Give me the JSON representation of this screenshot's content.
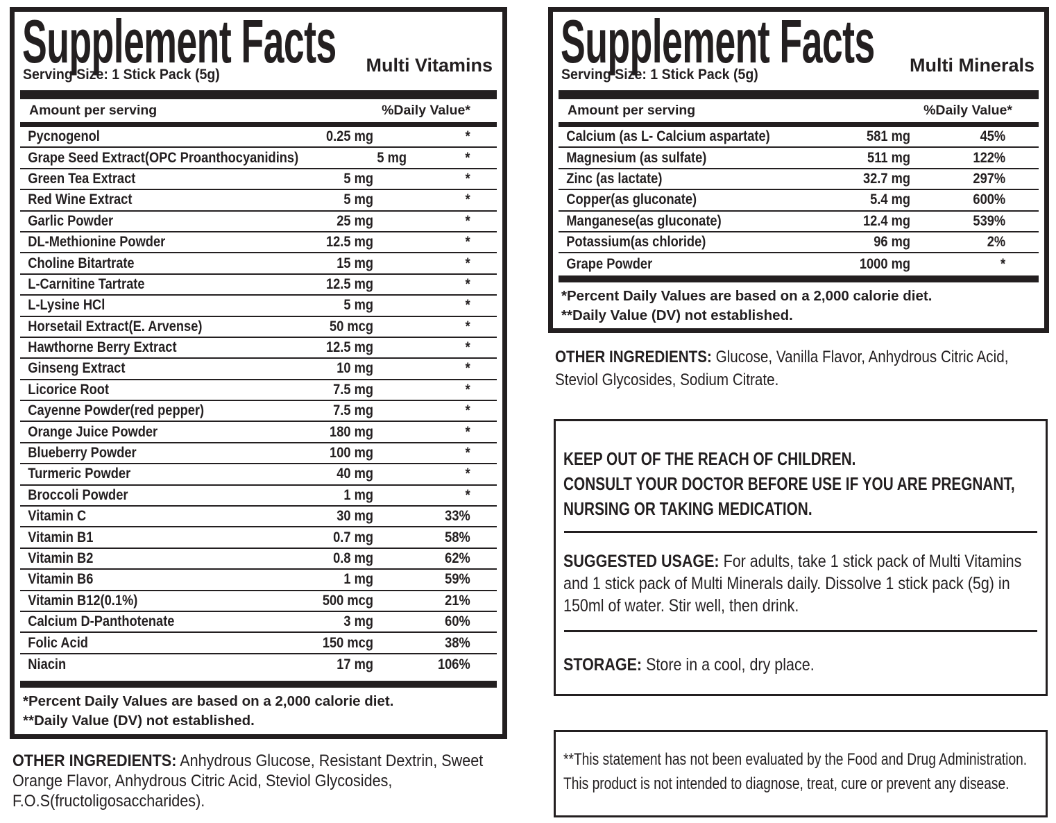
{
  "colors": {
    "ink": "#231f20"
  },
  "vitamins": {
    "title": "Supplement Facts",
    "subtitle": "Multi Vitamins",
    "serving_size": "Serving Size: 1 Stick Pack (5g)",
    "columns": {
      "amount": "Amount per serving",
      "daily_value": "%Daily Value*"
    },
    "rows": [
      {
        "name": "Pycnogenol",
        "amount": "0.25 mg",
        "dv": "*"
      },
      {
        "name": "Grape Seed Extract(OPC Proanthocyanidins)",
        "amount": "5 mg",
        "dv": "*"
      },
      {
        "name": "Green Tea Extract",
        "amount": "5 mg",
        "dv": "*"
      },
      {
        "name": "Red Wine Extract",
        "amount": "5 mg",
        "dv": "*"
      },
      {
        "name": "Garlic Powder",
        "amount": "25 mg",
        "dv": "*"
      },
      {
        "name": "DL-Methionine Powder",
        "amount": "12.5 mg",
        "dv": "*"
      },
      {
        "name": "Choline Bitartrate",
        "amount": "15 mg",
        "dv": "*"
      },
      {
        "name": "L-Carnitine Tartrate",
        "amount": "12.5 mg",
        "dv": "*"
      },
      {
        "name": "L-Lysine HCl",
        "amount": "5 mg",
        "dv": "*"
      },
      {
        "name": "Horsetail Extract(E. Arvense)",
        "amount": "50 mcg",
        "dv": "*"
      },
      {
        "name": "Hawthorne Berry Extract",
        "amount": "12.5 mg",
        "dv": "*"
      },
      {
        "name": "Ginseng Extract",
        "amount": "10 mg",
        "dv": "*"
      },
      {
        "name": "Licorice Root",
        "amount": "7.5 mg",
        "dv": "*"
      },
      {
        "name": "Cayenne Powder(red pepper)",
        "amount": "7.5 mg",
        "dv": "*"
      },
      {
        "name": "Orange Juice Powder",
        "amount": "180 mg",
        "dv": "*"
      },
      {
        "name": "Blueberry Powder",
        "amount": "100 mg",
        "dv": "*"
      },
      {
        "name": "Turmeric Powder",
        "amount": "40 mg",
        "dv": "*"
      },
      {
        "name": "Broccoli Powder",
        "amount": "1 mg",
        "dv": "*"
      },
      {
        "name": "Vitamin C",
        "amount": "30 mg",
        "dv": "33%"
      },
      {
        "name": "Vitamin B1",
        "amount": "0.7 mg",
        "dv": "58%"
      },
      {
        "name": "Vitamin B2",
        "amount": "0.8 mg",
        "dv": "62%"
      },
      {
        "name": "Vitamin B6",
        "amount": "1 mg",
        "dv": "59%"
      },
      {
        "name": "Vitamin B12(0.1%)",
        "amount": "500 mcg",
        "dv": "21%"
      },
      {
        "name": "Calcium D-Panthotenate",
        "amount": "3 mg",
        "dv": "60%"
      },
      {
        "name": "Folic Acid",
        "amount": "150 mcg",
        "dv": "38%"
      },
      {
        "name": "Niacin",
        "amount": "17 mg",
        "dv": "106%"
      }
    ],
    "footnotes": [
      "*Percent Daily Values are based on a 2,000 calorie diet.",
      "**Daily Value (DV) not established."
    ]
  },
  "minerals": {
    "title": "Supplement Facts",
    "subtitle": "Multi Minerals",
    "serving_size": "Serving Size: 1 Stick Pack (5g)",
    "columns": {
      "amount": "Amount per serving",
      "daily_value": "%Daily Value*"
    },
    "rows": [
      {
        "name": "Calcium (as L- Calcium aspartate)",
        "amount": "581 mg",
        "dv": "45%"
      },
      {
        "name": "Magnesium (as sulfate)",
        "amount": "511 mg",
        "dv": "122%"
      },
      {
        "name": "Zinc (as lactate)",
        "amount": "32.7 mg",
        "dv": "297%"
      },
      {
        "name": "Copper(as gluconate)",
        "amount": "5.4 mg",
        "dv": "600%"
      },
      {
        "name": "Manganese(as gluconate)",
        "amount": "12.4 mg",
        "dv": "539%"
      },
      {
        "name": "Potassium(as chloride)",
        "amount": "96 mg",
        "dv": "2%"
      },
      {
        "name": "Grape Powder",
        "amount": "1000 mg",
        "dv": "*"
      }
    ],
    "footnotes": [
      "*Percent Daily Values are based on a 2,000 calorie diet.",
      "**Daily Value (DV) not established."
    ]
  },
  "other_ingredients_vitamins": {
    "label": "OTHER INGREDIENTS:",
    "text": "Anhydrous Glucose, Resistant Dextrin, Sweet Orange Flavor, Anhydrous Citric Acid, Steviol Glycosides, F.O.S(fructoligosaccharides)."
  },
  "other_ingredients_minerals": {
    "label": "OTHER INGREDIENTS:",
    "text": "Glucose, Vanilla Flavor, Anhydrous Citric Acid, Steviol Glycosides, Sodium Citrate."
  },
  "warning": {
    "lines": [
      "KEEP OUT OF THE REACH OF CHILDREN.",
      "CONSULT YOUR DOCTOR BEFORE USE IF YOU ARE PREGNANT, NURSING OR TAKING MEDICATION."
    ]
  },
  "suggested_usage": {
    "label": "SUGGESTED USAGE:",
    "text": "For adults, take 1 stick pack of Multi Vitamins and 1 stick pack of Multi Minerals daily. Dissolve 1 stick pack (5g) in 150ml of water. Stir well, then drink."
  },
  "storage": {
    "label": "STORAGE:",
    "text": "Store in a cool, dry place."
  },
  "fda_disclaimer": {
    "text": "**This statement has not been evaluated by the Food and Drug Administration. This product is not intended to diagnose, treat, cure or prevent any disease."
  }
}
